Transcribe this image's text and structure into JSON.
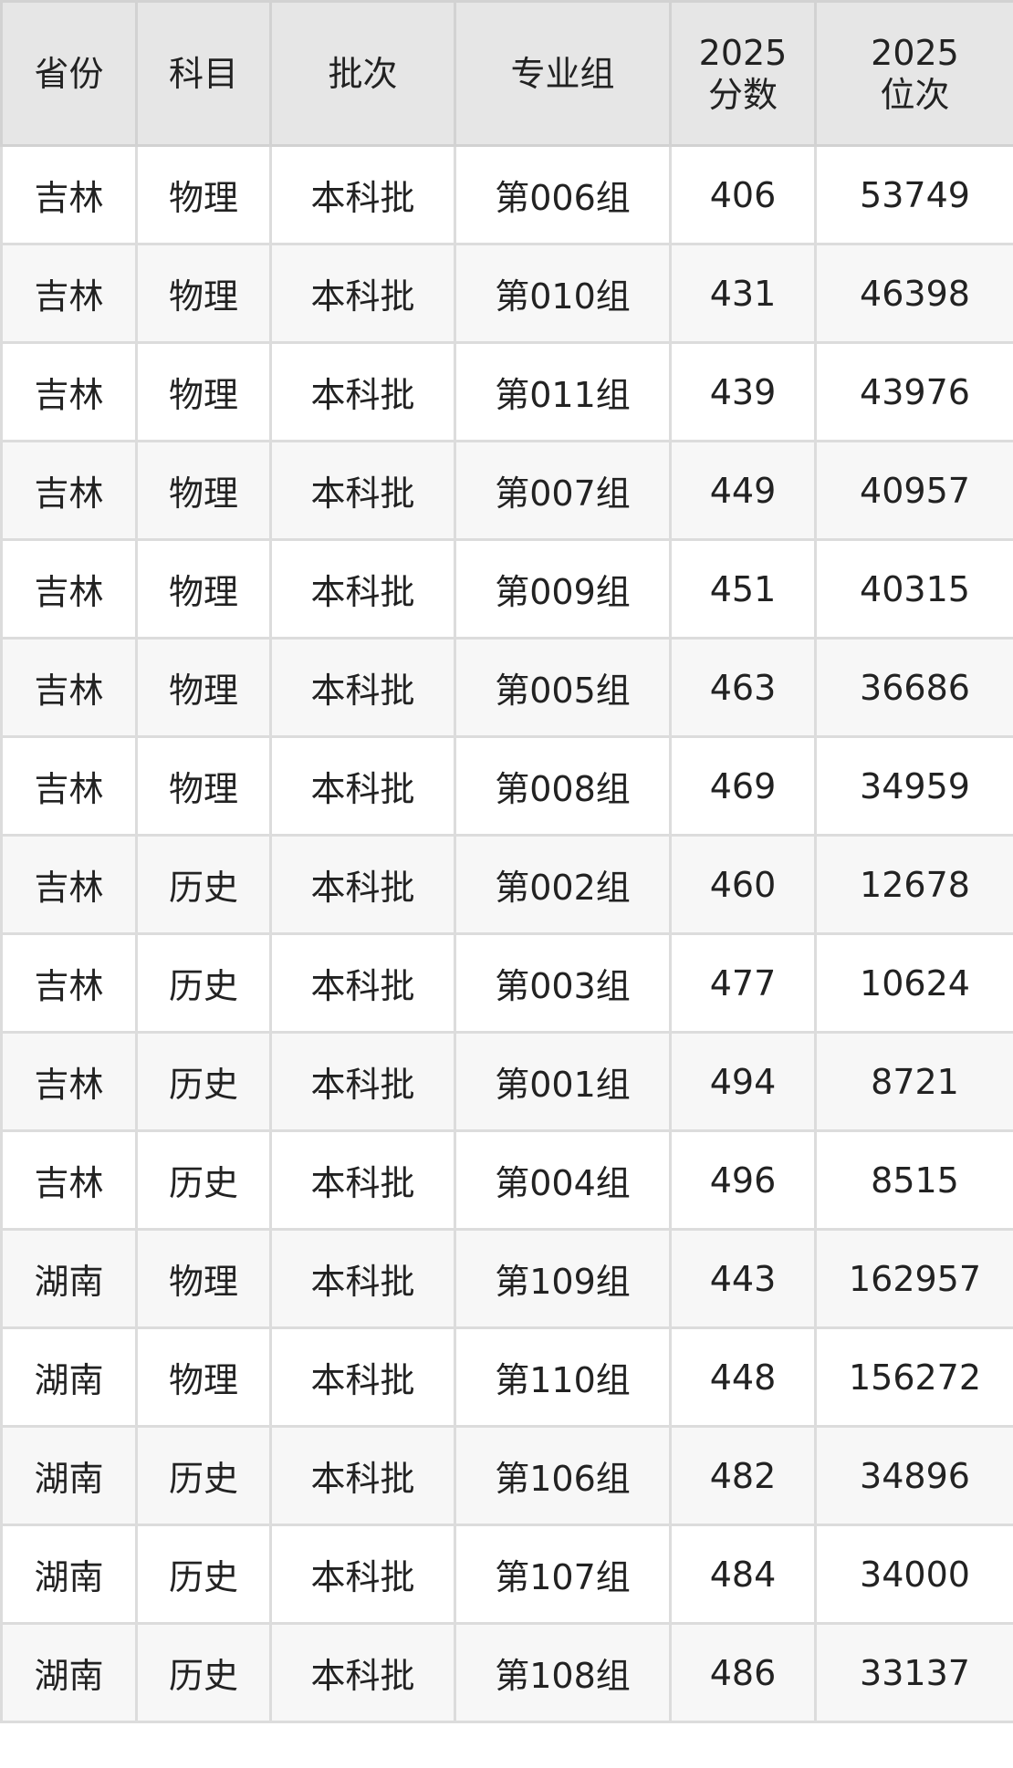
{
  "table": {
    "headers": [
      "省份",
      "科目",
      "批次",
      "专业组",
      "2025\n分数",
      "2025\n位次"
    ],
    "header_lines": [
      [
        "省份"
      ],
      [
        "科目"
      ],
      [
        "批次"
      ],
      [
        "专业组"
      ],
      [
        "2025",
        "分数"
      ],
      [
        "2025",
        "位次"
      ]
    ],
    "rows": [
      [
        "吉林",
        "物理",
        "本科批",
        "第006组",
        "406",
        "53749"
      ],
      [
        "吉林",
        "物理",
        "本科批",
        "第010组",
        "431",
        "46398"
      ],
      [
        "吉林",
        "物理",
        "本科批",
        "第011组",
        "439",
        "43976"
      ],
      [
        "吉林",
        "物理",
        "本科批",
        "第007组",
        "449",
        "40957"
      ],
      [
        "吉林",
        "物理",
        "本科批",
        "第009组",
        "451",
        "40315"
      ],
      [
        "吉林",
        "物理",
        "本科批",
        "第005组",
        "463",
        "36686"
      ],
      [
        "吉林",
        "物理",
        "本科批",
        "第008组",
        "469",
        "34959"
      ],
      [
        "吉林",
        "历史",
        "本科批",
        "第002组",
        "460",
        "12678"
      ],
      [
        "吉林",
        "历史",
        "本科批",
        "第003组",
        "477",
        "10624"
      ],
      [
        "吉林",
        "历史",
        "本科批",
        "第001组",
        "494",
        "8721"
      ],
      [
        "吉林",
        "历史",
        "本科批",
        "第004组",
        "496",
        "8515"
      ],
      [
        "湖南",
        "物理",
        "本科批",
        "第109组",
        "443",
        "162957"
      ],
      [
        "湖南",
        "物理",
        "本科批",
        "第110组",
        "448",
        "156272"
      ],
      [
        "湖南",
        "历史",
        "本科批",
        "第106组",
        "482",
        "34896"
      ],
      [
        "湖南",
        "历史",
        "本科批",
        "第107组",
        "484",
        "34000"
      ],
      [
        "湖南",
        "历史",
        "本科批",
        "第108组",
        "486",
        "33137"
      ]
    ]
  }
}
